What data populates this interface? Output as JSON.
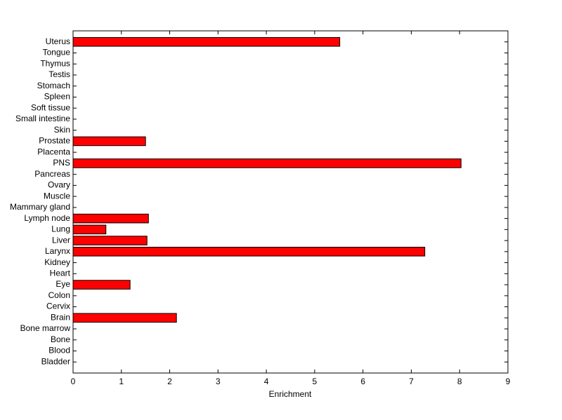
{
  "chart_data": {
    "type": "barh",
    "xlabel": "Enrichment",
    "categories": [
      "Uterus",
      "Tongue",
      "Thymus",
      "Testis",
      "Stomach",
      "Spleen",
      "Soft tissue",
      "Small intestine",
      "Skin",
      "Prostate",
      "Placenta",
      "PNS",
      "Pancreas",
      "Ovary",
      "Muscle",
      "Mammary gland",
      "Lymph node",
      "Lung",
      "Liver",
      "Larynx",
      "Kidney",
      "Heart",
      "Eye",
      "Colon",
      "Cervix",
      "Brain",
      "Bone marrow",
      "Bone",
      "Blood",
      "Bladder"
    ],
    "values": [
      5.52,
      0,
      0,
      0,
      0,
      0,
      0,
      0,
      0,
      1.5,
      0,
      8.03,
      0,
      0,
      0,
      0,
      1.56,
      0.68,
      1.53,
      7.28,
      0,
      0,
      1.18,
      0,
      0,
      2.14,
      0,
      0,
      0,
      0
    ],
    "color": "#ff0000",
    "xlim": [
      0,
      9
    ],
    "xticks": [
      0,
      1,
      2,
      3,
      4,
      5,
      6,
      7,
      8,
      9
    ]
  }
}
